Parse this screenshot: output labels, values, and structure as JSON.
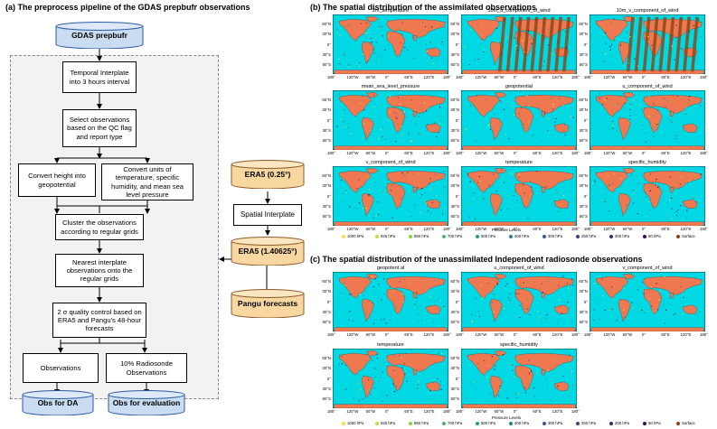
{
  "panel_a": {
    "title": "(a) The preprocess pipeline of the GDAS prepbufr observations",
    "gdas": "GDAS prepbufr",
    "temporal": "Temporal Interplate into 3 hours interval",
    "select": "Select observations based on the QC flag and report type",
    "convert_height": "Convert height into geopotential",
    "convert_units": "Convert units of temperature, specific humidity, and mean sea level pressure",
    "cluster": "Cluster the observations according to regular grids",
    "nearest": "Nearest interplate observations onto the regular grids",
    "qc": "2 σ quality control based on ERA5 and Pangu's 48-hour forecasts",
    "observations": "Observations",
    "radiosonde": "10% Radiosonde Observations",
    "obs_da": "Obs for DA",
    "obs_eval": "Obs for evaluation",
    "era5_025": "ERA5 (0.25°)",
    "spatial": "Spatial Interplate",
    "era5_14": "ERA5 (1.40625°)",
    "pangu": "Pangu forecasts"
  },
  "panel_b": {
    "title": "(b) The spatial distribution of the assimilated observations",
    "maps": [
      "2m_temperature",
      "10m_u_component_of_wind",
      "10m_v_component_of_wind",
      "mean_sea_level_pressure",
      "geopotential",
      "u_component_of_wind",
      "v_component_of_wind",
      "temperature",
      "specific_humidity"
    ]
  },
  "panel_c": {
    "title": "(c) The spatial distribution of the unassimilated Independent radiosonde observations",
    "maps": [
      "geopotent.al",
      "u_component_of_wind",
      "v_component_of_wind",
      "temperature",
      "specific_humidity"
    ]
  },
  "axes": {
    "lat": [
      "60°N",
      "30°N",
      "0°",
      "30°S",
      "60°S"
    ],
    "lon": [
      "180°",
      "120°W",
      "60°W",
      "0°",
      "60°E",
      "120°E",
      "180°"
    ]
  },
  "legend": {
    "title": "Pressure Levels",
    "items": [
      {
        "label": "1000 hPa",
        "color": "#f5e04a"
      },
      {
        "label": "925 hPa",
        "color": "#c8dc3c"
      },
      {
        "label": "850 hPa",
        "color": "#8cd24a"
      },
      {
        "label": "700 hPa",
        "color": "#4ab873"
      },
      {
        "label": "500 hPa",
        "color": "#2a9a8a"
      },
      {
        "label": "400 hPa",
        "color": "#2f7d8f"
      },
      {
        "label": "300 hPa",
        "color": "#3a5a8f"
      },
      {
        "label": "250 hPa",
        "color": "#3f3f88"
      },
      {
        "label": "200 hPa",
        "color": "#45237a"
      },
      {
        "label": "50 hPa",
        "color": "#3c0a5a"
      },
      {
        "label": "Surface",
        "color": "#8b4513"
      }
    ]
  },
  "colors": {
    "ocean": "#00d8e4",
    "land": "#f07850",
    "cyl_fill": "#c9dcf2",
    "cyl_era": "#f8d7a0"
  }
}
